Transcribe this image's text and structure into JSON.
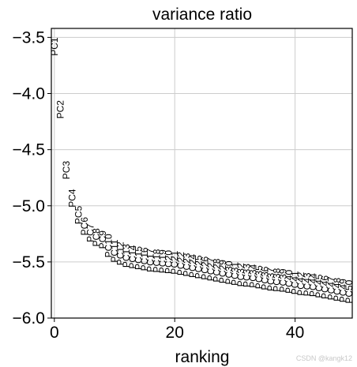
{
  "chart_data": {
    "type": "scatter",
    "title": "variance ratio",
    "xlabel": "ranking",
    "ylabel": "",
    "xlim": [
      -0.5,
      49.5
    ],
    "ylim": [
      -6.0,
      -3.42
    ],
    "xticks": [
      0,
      20,
      40
    ],
    "xtick_labels": [
      "0",
      "20",
      "40"
    ],
    "yticks": [
      -6.0,
      -5.5,
      -5.0,
      -4.5,
      -4.0,
      -3.5
    ],
    "ytick_labels": [
      "−6.0",
      "−5.5",
      "−5.0",
      "−4.5",
      "−4.0",
      "−3.5"
    ],
    "grid": true,
    "labels": [
      "PC1",
      "PC2",
      "PC3",
      "PC4",
      "PC5",
      "PC6",
      "PC7",
      "PC8",
      "PC9",
      "PC10",
      "PC11",
      "PC12",
      "PC13",
      "PC14",
      "PC15",
      "PC16",
      "PC17",
      "PC18",
      "PC19",
      "PC20",
      "PC21",
      "PC22",
      "PC23",
      "PC24",
      "PC25",
      "PC26",
      "PC27",
      "PC28",
      "PC29",
      "PC30",
      "PC31",
      "PC32",
      "PC33",
      "PC34",
      "PC35",
      "PC36",
      "PC37",
      "PC38",
      "PC39",
      "PC40",
      "PC41",
      "PC42",
      "PC43",
      "PC44",
      "PC45",
      "PC46",
      "PC47",
      "PC48",
      "PC49",
      "PC50"
    ],
    "x": [
      0,
      1,
      2,
      3,
      4,
      5,
      6,
      7,
      8,
      9,
      10,
      11,
      12,
      13,
      14,
      15,
      16,
      17,
      18,
      19,
      20,
      21,
      22,
      23,
      24,
      25,
      26,
      27,
      28,
      29,
      30,
      31,
      32,
      33,
      34,
      35,
      36,
      37,
      38,
      39,
      40,
      41,
      42,
      43,
      44,
      45,
      46,
      47,
      48,
      49
    ],
    "y": [
      -3.5,
      -4.06,
      -4.6,
      -4.85,
      -5.0,
      -5.1,
      -5.16,
      -5.2,
      -5.22,
      -5.25,
      -5.3,
      -5.32,
      -5.34,
      -5.35,
      -5.36,
      -5.37,
      -5.38,
      -5.385,
      -5.39,
      -5.395,
      -5.4,
      -5.41,
      -5.42,
      -5.43,
      -5.44,
      -5.45,
      -5.46,
      -5.47,
      -5.48,
      -5.49,
      -5.5,
      -5.51,
      -5.515,
      -5.52,
      -5.53,
      -5.54,
      -5.55,
      -5.555,
      -5.56,
      -5.57,
      -5.58,
      -5.59,
      -5.595,
      -5.6,
      -5.61,
      -5.62,
      -5.63,
      -5.64,
      -5.65,
      -5.66
    ]
  },
  "watermark": "CSDN @kangk12"
}
